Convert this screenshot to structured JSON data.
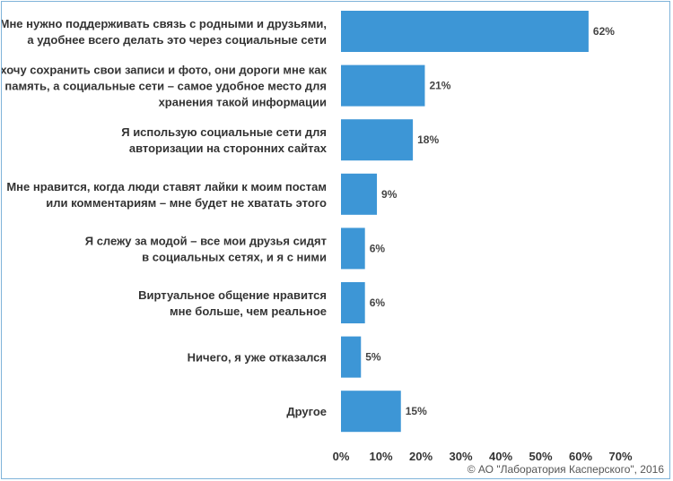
{
  "chart_data": {
    "type": "bar",
    "orientation": "horizontal",
    "categories": [
      [
        "Мне нужно поддерживать связь с родными и друзьями,",
        "а удобнее всего делать это через социальные сети"
      ],
      [
        "Я хочу сохранить свои записи и фото, они дороги мне как",
        "память, а социальные сети – самое удобное место для",
        "хранения такой информации"
      ],
      [
        "Я использую социальные сети для",
        "авторизации на сторонних сайтах"
      ],
      [
        "Мне нравится, когда люди ставят лайки к моим постам",
        "или комментариям – мне будет не хватать этого"
      ],
      [
        "Я слежу за модой – все мои друзья сидят",
        "в социальных сетях, и я с ними"
      ],
      [
        "Виртуальное общение нравится",
        "мне больше, чем реальное"
      ],
      [
        "Ничего, я уже отказался"
      ],
      [
        "Другое"
      ]
    ],
    "values": [
      62,
      21,
      18,
      9,
      6,
      6,
      5,
      15
    ],
    "value_labels": [
      "62%",
      "21%",
      "18%",
      "9%",
      "6%",
      "6%",
      "5%",
      "15%"
    ],
    "xlim": [
      0,
      70
    ],
    "xticks": [
      "0%",
      "10%",
      "20%",
      "30%",
      "40%",
      "50%",
      "60%",
      "70%"
    ],
    "title": "",
    "xlabel": "",
    "ylabel": "",
    "grid": false,
    "legend": "none",
    "bar_color": "#3d96d6",
    "border_color": "#7fb3d9"
  },
  "copyright": "© АО \"Лаборатория Касперского\", 2016"
}
